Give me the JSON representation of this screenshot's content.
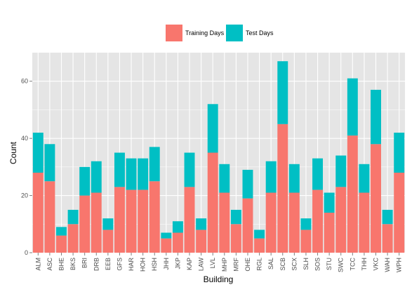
{
  "chart_data": {
    "type": "bar",
    "stacked": true,
    "title": "",
    "xlabel": "Building",
    "ylabel": "Count",
    "ylim": [
      0,
      70
    ],
    "yticks": [
      0,
      20,
      40,
      60
    ],
    "grid": true,
    "legend_position": "top",
    "categories": [
      "ALM",
      "ASC",
      "BHE",
      "BKS",
      "BRI",
      "DRB",
      "EEB",
      "GFS",
      "HAR",
      "HOH",
      "HSH",
      "JHH",
      "JKP",
      "KAP",
      "LAW",
      "LVL",
      "MHP",
      "MRF",
      "OHE",
      "RGL",
      "SAL",
      "SCB",
      "SCX",
      "SLH",
      "SOS",
      "STU",
      "SWC",
      "TCC",
      "THH",
      "VKC",
      "WAH",
      "WPH"
    ],
    "series": [
      {
        "name": "Training Days",
        "color": "#F8766D",
        "values": [
          28,
          25,
          6,
          10,
          20,
          21,
          8,
          23,
          22,
          22,
          25,
          5,
          7,
          23,
          8,
          35,
          21,
          10,
          19,
          5,
          21,
          45,
          21,
          8,
          22,
          14,
          23,
          41,
          21,
          38,
          10,
          28
        ]
      },
      {
        "name": "Test Days",
        "color": "#00BFC4",
        "values": [
          14,
          13,
          3,
          5,
          10,
          11,
          4,
          12,
          11,
          11,
          12,
          2,
          4,
          12,
          4,
          17,
          10,
          5,
          10,
          3,
          11,
          22,
          10,
          4,
          11,
          7,
          11,
          20,
          10,
          19,
          5,
          14
        ]
      }
    ],
    "panel_background": "#E5E5E5",
    "grid_color": "#FFFFFF"
  }
}
